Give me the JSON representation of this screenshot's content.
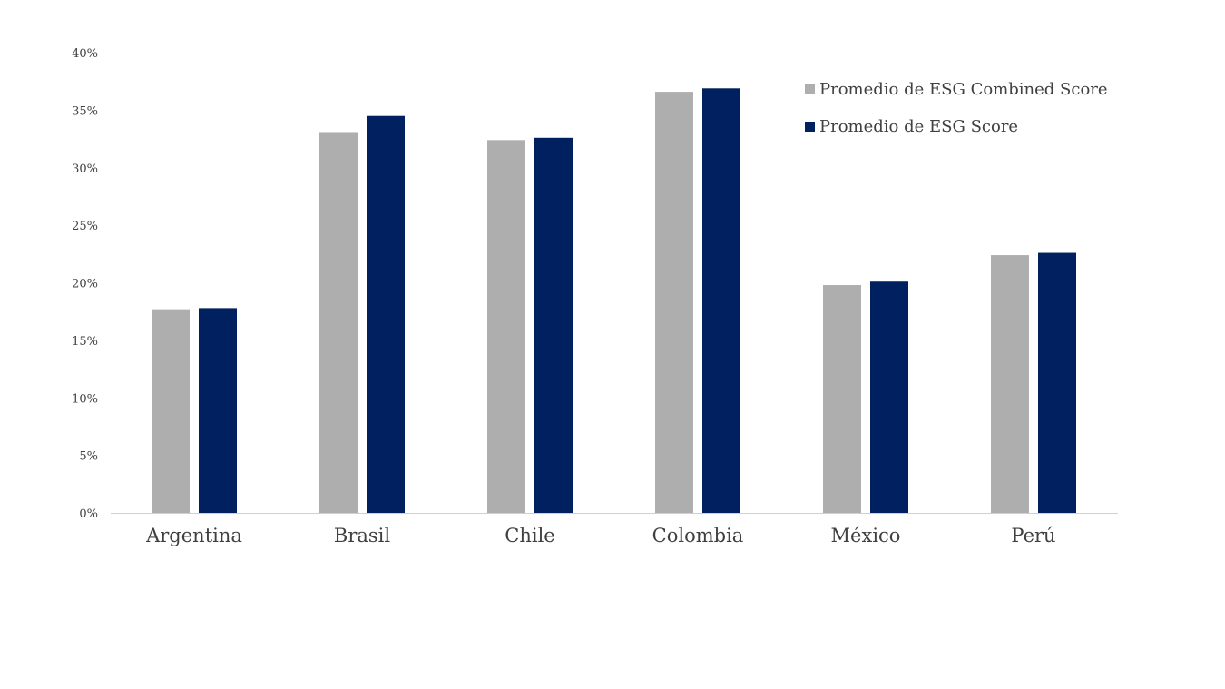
{
  "chart_data": {
    "type": "bar",
    "categories": [
      "Argentina",
      "Brasil",
      "Chile",
      "Colombia",
      "México",
      "Perú"
    ],
    "series": [
      {
        "name": "Promedio de ESG Combined Score",
        "color": "#AEAEAE",
        "values": [
          17.7,
          33.1,
          32.4,
          36.6,
          19.8,
          22.4
        ]
      },
      {
        "name": "Promedio de ESG Score",
        "color": "#00205F",
        "values": [
          17.8,
          34.5,
          32.6,
          36.9,
          20.1,
          22.6
        ]
      }
    ],
    "ylim": [
      0,
      40
    ],
    "yticks": [
      0,
      5,
      10,
      15,
      20,
      25,
      30,
      35,
      40
    ],
    "ytick_labels": [
      "0%",
      "5%",
      "10%",
      "15%",
      "20%",
      "25%",
      "30%",
      "35%",
      "40%"
    ],
    "grid": false,
    "legend_position": "top-right"
  }
}
